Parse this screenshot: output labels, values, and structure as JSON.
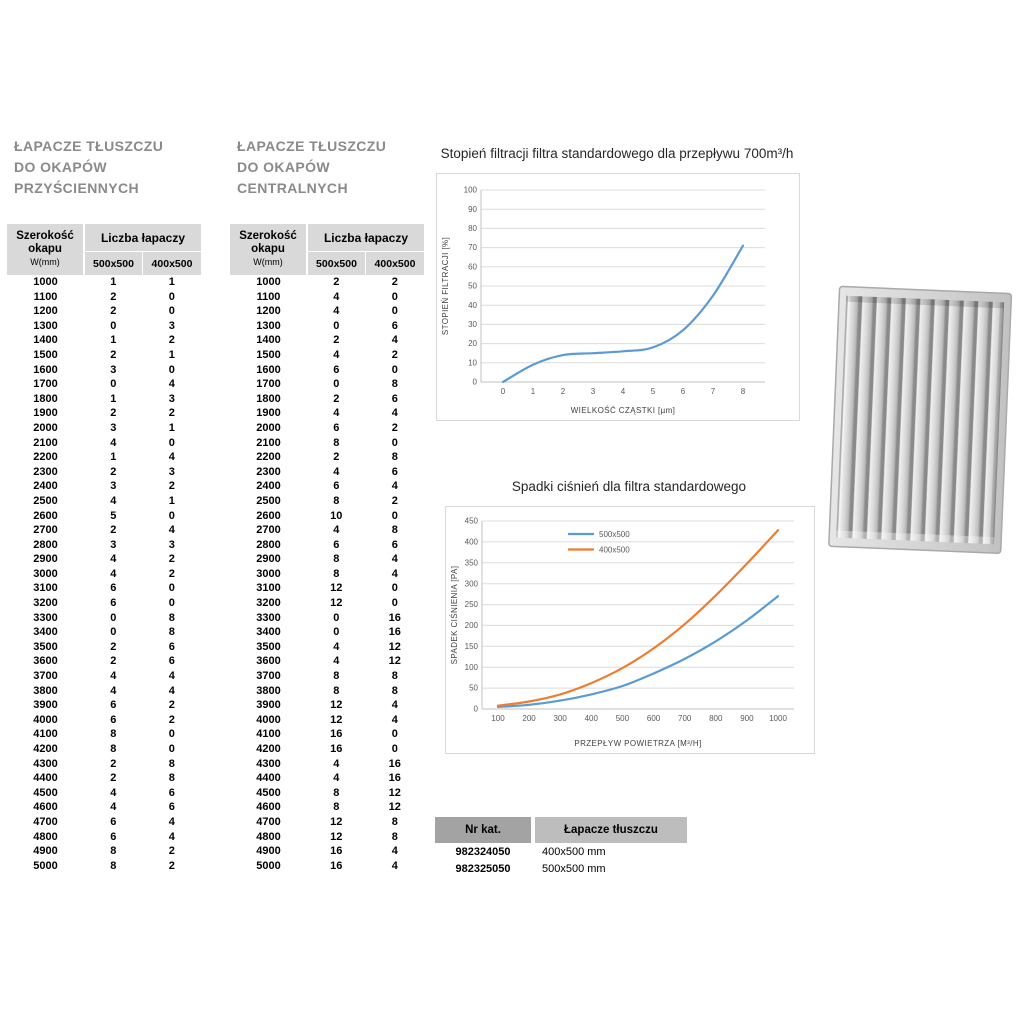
{
  "left_section": {
    "title_lines": [
      "ŁAPACZE TŁUSZCZU",
      "DO OKAPÓW",
      "PRZYŚCIENNYCH"
    ],
    "header": {
      "col1": [
        "Szerokość",
        "okapu",
        "W(mm)"
      ],
      "group": "Liczba łapaczy",
      "sub": [
        "500x500",
        "400x500"
      ]
    },
    "rows": [
      [
        1000,
        1,
        1
      ],
      [
        1100,
        2,
        0
      ],
      [
        1200,
        2,
        0
      ],
      [
        1300,
        0,
        3
      ],
      [
        1400,
        1,
        2
      ],
      [
        1500,
        2,
        1
      ],
      [
        1600,
        3,
        0
      ],
      [
        1700,
        0,
        4
      ],
      [
        1800,
        1,
        3
      ],
      [
        1900,
        2,
        2
      ],
      [
        2000,
        3,
        1
      ],
      [
        2100,
        4,
        0
      ],
      [
        2200,
        1,
        4
      ],
      [
        2300,
        2,
        3
      ],
      [
        2400,
        3,
        2
      ],
      [
        2500,
        4,
        1
      ],
      [
        2600,
        5,
        0
      ],
      [
        2700,
        2,
        4
      ],
      [
        2800,
        3,
        3
      ],
      [
        2900,
        4,
        2
      ],
      [
        3000,
        4,
        2
      ],
      [
        3100,
        6,
        0
      ],
      [
        3200,
        6,
        0
      ],
      [
        3300,
        0,
        8
      ],
      [
        3400,
        0,
        8
      ],
      [
        3500,
        2,
        6
      ],
      [
        3600,
        2,
        6
      ],
      [
        3700,
        4,
        4
      ],
      [
        3800,
        4,
        4
      ],
      [
        3900,
        6,
        2
      ],
      [
        4000,
        6,
        2
      ],
      [
        4100,
        8,
        0
      ],
      [
        4200,
        8,
        0
      ],
      [
        4300,
        2,
        8
      ],
      [
        4400,
        2,
        8
      ],
      [
        4500,
        4,
        6
      ],
      [
        4600,
        4,
        6
      ],
      [
        4700,
        6,
        4
      ],
      [
        4800,
        6,
        4
      ],
      [
        4900,
        8,
        2
      ],
      [
        5000,
        8,
        2
      ]
    ]
  },
  "center_section": {
    "title_lines": [
      "ŁAPACZE TŁUSZCZU",
      "DO OKAPÓW",
      "CENTRALNYCH"
    ],
    "header": {
      "col1": [
        "Szerokość",
        "okapu",
        "W(mm)"
      ],
      "group": "Liczba łapaczy",
      "sub": [
        "500x500",
        "400x500"
      ]
    },
    "rows": [
      [
        1000,
        2,
        2
      ],
      [
        1100,
        4,
        0
      ],
      [
        1200,
        4,
        0
      ],
      [
        1300,
        0,
        6
      ],
      [
        1400,
        2,
        4
      ],
      [
        1500,
        4,
        2
      ],
      [
        1600,
        6,
        0
      ],
      [
        1700,
        0,
        8
      ],
      [
        1800,
        2,
        6
      ],
      [
        1900,
        4,
        4
      ],
      [
        2000,
        6,
        2
      ],
      [
        2100,
        8,
        0
      ],
      [
        2200,
        2,
        8
      ],
      [
        2300,
        4,
        6
      ],
      [
        2400,
        6,
        4
      ],
      [
        2500,
        8,
        2
      ],
      [
        2600,
        10,
        0
      ],
      [
        2700,
        4,
        8
      ],
      [
        2800,
        6,
        6
      ],
      [
        2900,
        8,
        4
      ],
      [
        3000,
        8,
        4
      ],
      [
        3100,
        12,
        0
      ],
      [
        3200,
        12,
        0
      ],
      [
        3300,
        0,
        16
      ],
      [
        3400,
        0,
        16
      ],
      [
        3500,
        4,
        12
      ],
      [
        3600,
        4,
        12
      ],
      [
        3700,
        8,
        8
      ],
      [
        3800,
        8,
        8
      ],
      [
        3900,
        12,
        4
      ],
      [
        4000,
        12,
        4
      ],
      [
        4100,
        16,
        0
      ],
      [
        4200,
        16,
        0
      ],
      [
        4300,
        4,
        16
      ],
      [
        4400,
        4,
        16
      ],
      [
        4500,
        8,
        12
      ],
      [
        4600,
        8,
        12
      ],
      [
        4700,
        12,
        8
      ],
      [
        4800,
        12,
        8
      ],
      [
        4900,
        16,
        4
      ],
      [
        5000,
        16,
        4
      ]
    ]
  },
  "chart_data": [
    {
      "type": "line",
      "title": "Stopień filtracji filtra standardowego dla przepływu 700m³/h",
      "xlabel": "WIELKOŚĆ CZĄSTKI [µm]",
      "ylabel": "STOPIEŃ FILTRACJI [%]",
      "xlim": [
        0,
        8
      ],
      "ylim": [
        0,
        100
      ],
      "xticks": [
        0,
        1,
        2,
        3,
        4,
        5,
        6,
        7,
        8
      ],
      "yticks": [
        0,
        10,
        20,
        30,
        40,
        50,
        60,
        70,
        80,
        90,
        100
      ],
      "legend": false,
      "grid": "horizontal",
      "series": [
        {
          "name": "stopień filtracji",
          "color": "#5B9BD5",
          "x": [
            0,
            1,
            2,
            3,
            4,
            5,
            6,
            7,
            8
          ],
          "y": [
            0,
            9,
            14,
            15,
            16,
            18,
            27,
            45,
            71
          ]
        }
      ]
    },
    {
      "type": "line",
      "title": "Spadki ciśnień dla filtra standardowego",
      "xlabel": "PRZEPŁYW POWIETRZA [M³/H]",
      "ylabel": "SPADEK CIŚNIENIA [PA]",
      "xlim": [
        100,
        1000
      ],
      "ylim": [
        0,
        450
      ],
      "xticks": [
        100,
        200,
        300,
        400,
        500,
        600,
        700,
        800,
        900,
        1000
      ],
      "yticks": [
        0,
        50,
        100,
        150,
        200,
        250,
        300,
        350,
        400,
        450
      ],
      "legend": true,
      "grid": "horizontal",
      "series": [
        {
          "name": "500x500",
          "color": "#5B9BD5",
          "x": [
            100,
            200,
            300,
            400,
            500,
            600,
            700,
            800,
            900,
            1000
          ],
          "y": [
            5,
            10,
            20,
            35,
            55,
            85,
            120,
            162,
            212,
            270
          ]
        },
        {
          "name": "400x500",
          "color": "#ED7D31",
          "x": [
            100,
            200,
            300,
            400,
            500,
            600,
            700,
            800,
            900,
            1000
          ],
          "y": [
            8,
            18,
            35,
            62,
            98,
            145,
            203,
            272,
            348,
            428
          ]
        }
      ]
    }
  ],
  "catalog": {
    "headers": [
      "Nr kat.",
      "Łapacze tłuszczu"
    ],
    "rows": [
      [
        "982324050",
        "400x500 mm"
      ],
      [
        "982325050",
        "500x500 mm"
      ]
    ]
  },
  "illustration": {
    "name": "baffle-grease-filter"
  },
  "colors": {
    "accent_blue": "#5B9BD5",
    "accent_orange": "#ED7D31",
    "table_header_gray": "#d9d9d9",
    "title_gray": "#8a8a8a"
  }
}
